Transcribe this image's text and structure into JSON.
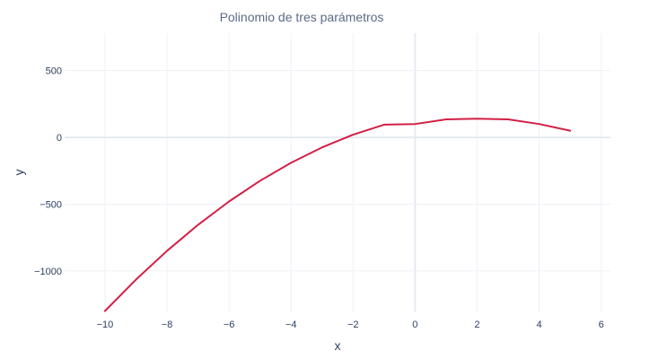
{
  "chart_data": {
    "type": "line",
    "title": "Polinomio de tres parámetros",
    "xlabel": "x",
    "ylabel": "y",
    "xlim": [
      -11.3,
      6.3
    ],
    "ylim": [
      -1310,
      780
    ],
    "xticks": [
      -10,
      -8,
      -6,
      -4,
      -2,
      0,
      2,
      4,
      6
    ],
    "xtick_labels": [
      "−10",
      "−8",
      "−6",
      "−4",
      "−2",
      "0",
      "2",
      "4",
      "6"
    ],
    "yticks": [
      500,
      0,
      -500,
      -1000
    ],
    "ytick_labels": [
      "500",
      "0",
      "−500",
      "−1000"
    ],
    "grid": true,
    "series": [
      {
        "color": "#d21f45",
        "x": [
          -10,
          -9,
          -8,
          -7,
          -6,
          -5,
          -4,
          -3,
          -2,
          -1,
          0,
          1,
          2,
          3,
          4,
          5
        ],
        "y": [
          -1300,
          -1065,
          -850,
          -655,
          -480,
          -325,
          -190,
          -75,
          20,
          95,
          100,
          135,
          140,
          135,
          100,
          50
        ]
      }
    ]
  }
}
